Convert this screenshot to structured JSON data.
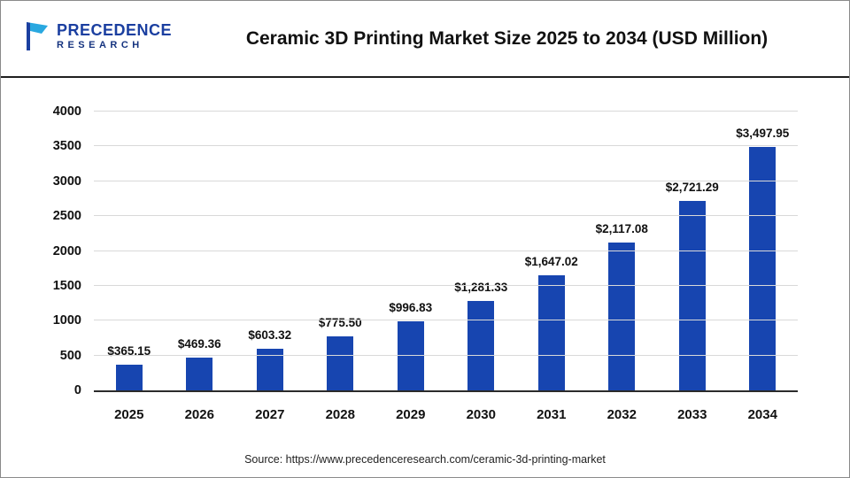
{
  "logo": {
    "line1": "PRECEDENCE",
    "line2": "RESEARCH",
    "icon": "precedence-flag-icon",
    "color_primary": "#1b3fa0",
    "color_accent": "#29a8e0"
  },
  "header": {
    "title": "Ceramic 3D Printing Market Size 2025 to 2034 (USD Million)"
  },
  "chart_data": {
    "type": "bar",
    "title": "Ceramic 3D Printing Market Size 2025 to 2034 (USD Million)",
    "categories": [
      "2025",
      "2026",
      "2027",
      "2028",
      "2029",
      "2030",
      "2031",
      "2032",
      "2033",
      "2034"
    ],
    "values": [
      365.15,
      469.36,
      603.32,
      775.5,
      996.83,
      1281.33,
      1647.02,
      2117.08,
      2721.29,
      3497.95
    ],
    "data_labels": [
      "$365.15",
      "$469.36",
      "$603.32",
      "$775.50",
      "$996.83",
      "$1,281.33",
      "$1,647.02",
      "$2,117.08",
      "$2,721.29",
      "$3,497.95"
    ],
    "xlabel": "",
    "ylabel": "",
    "ylim": [
      0,
      4000
    ],
    "yticks": [
      0,
      500,
      1000,
      1500,
      2000,
      2500,
      3000,
      3500,
      4000
    ],
    "grid": true,
    "legend": false,
    "bar_color": "#1745b0"
  },
  "footer": {
    "source": "Source: https://www.precedenceresearch.com/ceramic-3d-printing-market"
  }
}
